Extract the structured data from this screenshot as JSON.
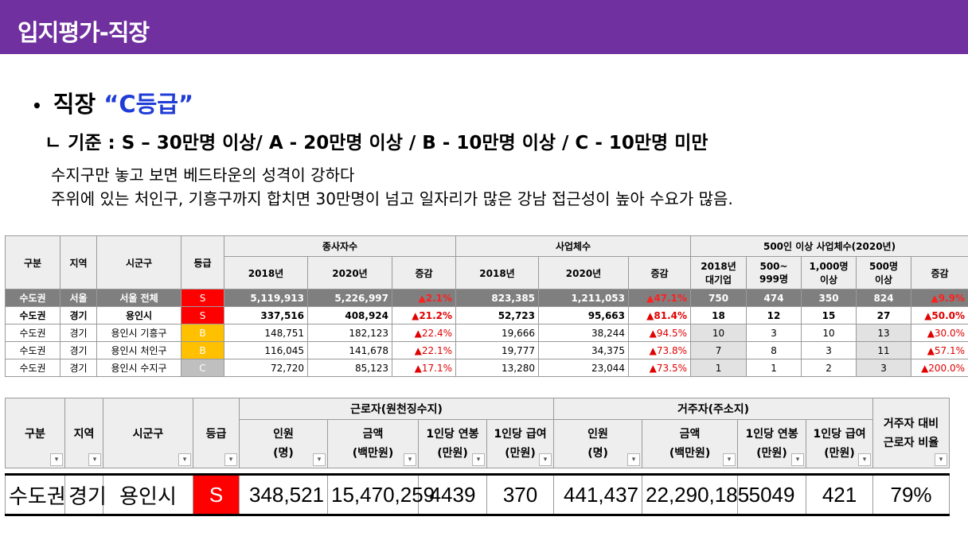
{
  "banner": {
    "title": "입지평가-직장"
  },
  "heading": {
    "bullet": "•",
    "prefix": "직장 ",
    "grade": "“C등급”"
  },
  "criteria": "ㄴ 기준 : S – 30만명 이상/ A - 20만명 이상 / B - 10만명 이상 / C - 10만명 미만",
  "description": [
    "수지구만 놓고 보면 베드타운의 성격이 강하다",
    "주위에 있는 처인구, 기흥구까지 합치면 30만명이 넘고 일자리가 많은 강남 접근성이 높아 수요가 많음."
  ],
  "colors": {
    "banner": "#7030a0",
    "grade_S": "#ff0000",
    "grade_B": "#ffc000",
    "grade_C": "#bfbfbf",
    "increase": "#e00000"
  },
  "table1": {
    "headers": {
      "division": "구분",
      "region": "지역",
      "district": "시군구",
      "grade": "등급",
      "employees": "종사자수",
      "businesses": "사업체수",
      "large": "500인 이상 사업체수(2020년)",
      "y2018": "2018년",
      "y2020": "2020년",
      "change": "증감",
      "large_2018_l1": "2018년",
      "large_2018_l2": "대기업",
      "r500_l1": "500~",
      "r500_l2": "999명",
      "r1000_l1": "1,000명",
      "r1000_l2": "이상",
      "r500p_l1": "500명",
      "r500p_l2": "이상"
    },
    "rows": [
      {
        "division": "수도권",
        "region": "서울",
        "district": "서울 전체",
        "grade": "S",
        "emp2018": "5,119,913",
        "emp2020": "5,226,997",
        "empChg": "▲2.1%",
        "biz2018": "823,385",
        "biz2020": "1,211,053",
        "bizChg": "▲47.1%",
        "lg2018": "750",
        "lg500": "474",
        "lg1000": "350",
        "lg500p": "824",
        "lgChg": "▲9.9%"
      },
      {
        "division": "수도권",
        "region": "경기",
        "district": "용인시",
        "grade": "S",
        "emp2018": "337,516",
        "emp2020": "408,924",
        "empChg": "▲21.2%",
        "biz2018": "52,723",
        "biz2020": "95,663",
        "bizChg": "▲81.4%",
        "lg2018": "18",
        "lg500": "12",
        "lg1000": "15",
        "lg500p": "27",
        "lgChg": "▲50.0%"
      },
      {
        "division": "수도권",
        "region": "경기",
        "district": "용인시 기흥구",
        "grade": "B",
        "emp2018": "148,751",
        "emp2020": "182,123",
        "empChg": "▲22.4%",
        "biz2018": "19,666",
        "biz2020": "38,244",
        "bizChg": "▲94.5%",
        "lg2018": "10",
        "lg500": "3",
        "lg1000": "10",
        "lg500p": "13",
        "lgChg": "▲30.0%"
      },
      {
        "division": "수도권",
        "region": "경기",
        "district": "용인시 처인구",
        "grade": "B",
        "emp2018": "116,045",
        "emp2020": "141,678",
        "empChg": "▲22.1%",
        "biz2018": "19,777",
        "biz2020": "34,375",
        "bizChg": "▲73.8%",
        "lg2018": "7",
        "lg500": "8",
        "lg1000": "3",
        "lg500p": "11",
        "lgChg": "▲57.1%"
      },
      {
        "division": "수도권",
        "region": "경기",
        "district": "용인시 수지구",
        "grade": "C",
        "emp2018": "72,720",
        "emp2020": "85,123",
        "empChg": "▲17.1%",
        "biz2018": "13,280",
        "biz2020": "23,044",
        "bizChg": "▲73.5%",
        "lg2018": "1",
        "lg500": "1",
        "lg1000": "2",
        "lg500p": "3",
        "lgChg": "▲200.0%"
      }
    ]
  },
  "table2": {
    "headers": {
      "division": "구분",
      "region": "지역",
      "district": "시군구",
      "grade": "등급",
      "workers": "근로자(원천징수지)",
      "residents": "거주자(주소지)",
      "ratio_l1": "거주자 대비",
      "ratio_l2": "근로자 비율",
      "count_l1": "인원",
      "count_l2": "(명)",
      "amount_l1": "금액",
      "amount_l2": "(백만원)",
      "annual_l1": "1인당 연봉",
      "annual_l2": "(만원)",
      "monthly_l1": "1인당 급여",
      "monthly_l2": "(만원)",
      "filter_icon": "▾"
    },
    "row": {
      "division": "수도권",
      "region": "경기",
      "district": "용인시",
      "grade": "S",
      "wCount": "348,521",
      "wAmount": "15,470,259",
      "wAnnual": "4439",
      "wMonthly": "370",
      "rCount": "441,437",
      "rAmount": "22,290,185",
      "rAnnual": "5049",
      "rMonthly": "421",
      "ratio": "79%"
    }
  }
}
